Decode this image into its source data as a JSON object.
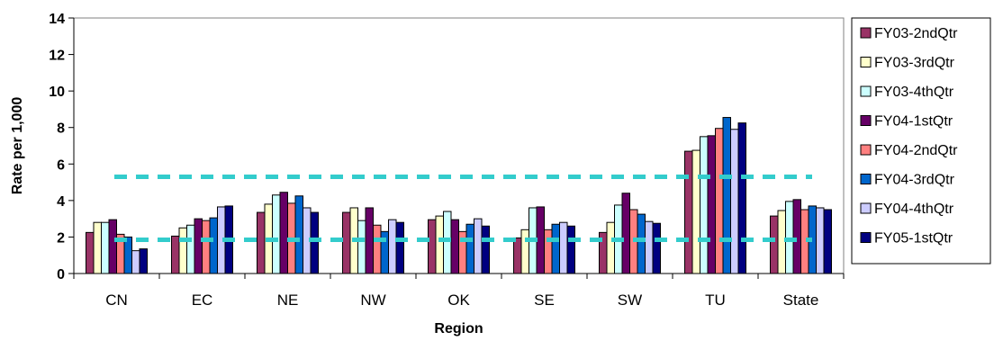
{
  "chart_data": {
    "type": "bar",
    "title": "",
    "xlabel": "Region",
    "ylabel": "Rate per 1,000",
    "ylim": [
      0,
      14
    ],
    "yticks": [
      0,
      2,
      4,
      6,
      8,
      10,
      12,
      14
    ],
    "grid": false,
    "legend_position": "right",
    "categories": [
      "CN",
      "EC",
      "NE",
      "NW",
      "OK",
      "SE",
      "SW",
      "TU",
      "State"
    ],
    "series": [
      {
        "name": "FY03-2ndQtr",
        "color": "#993366",
        "values": [
          2.25,
          2.05,
          3.35,
          3.35,
          2.95,
          1.95,
          2.25,
          6.7,
          3.15
        ]
      },
      {
        "name": "FY03-3rdQtr",
        "color": "#FFFFCC",
        "values": [
          2.8,
          2.5,
          3.8,
          3.6,
          3.15,
          2.4,
          2.8,
          6.75,
          3.45
        ]
      },
      {
        "name": "FY03-4thQtr",
        "color": "#CCFFFF",
        "values": [
          2.8,
          2.65,
          4.3,
          2.9,
          3.4,
          3.6,
          3.75,
          7.5,
          3.95
        ]
      },
      {
        "name": "FY04-1stQtr",
        "color": "#660066",
        "values": [
          2.95,
          3.0,
          4.45,
          3.6,
          2.95,
          3.65,
          4.4,
          7.55,
          4.05
        ]
      },
      {
        "name": "FY04-2ndQtr",
        "color": "#FF8080",
        "values": [
          2.15,
          2.9,
          3.85,
          2.65,
          2.3,
          2.4,
          3.5,
          7.95,
          3.5
        ]
      },
      {
        "name": "FY04-3rdQtr",
        "color": "#0066CC",
        "values": [
          2.0,
          3.05,
          4.25,
          2.3,
          2.7,
          2.7,
          3.25,
          8.55,
          3.7
        ]
      },
      {
        "name": "FY04-4thQtr",
        "color": "#CCCCFF",
        "values": [
          1.25,
          3.65,
          3.6,
          2.95,
          3.0,
          2.8,
          2.85,
          7.9,
          3.6
        ]
      },
      {
        "name": "FY05-1stQtr",
        "color": "#000080",
        "values": [
          1.35,
          3.7,
          3.35,
          2.8,
          2.6,
          2.6,
          2.75,
          8.25,
          3.5
        ]
      }
    ],
    "reference_lines": [
      {
        "value": 5.3,
        "color": "#33CCCC",
        "style": "dashed"
      },
      {
        "value": 1.85,
        "color": "#33CCCC",
        "style": "dashed"
      }
    ]
  }
}
